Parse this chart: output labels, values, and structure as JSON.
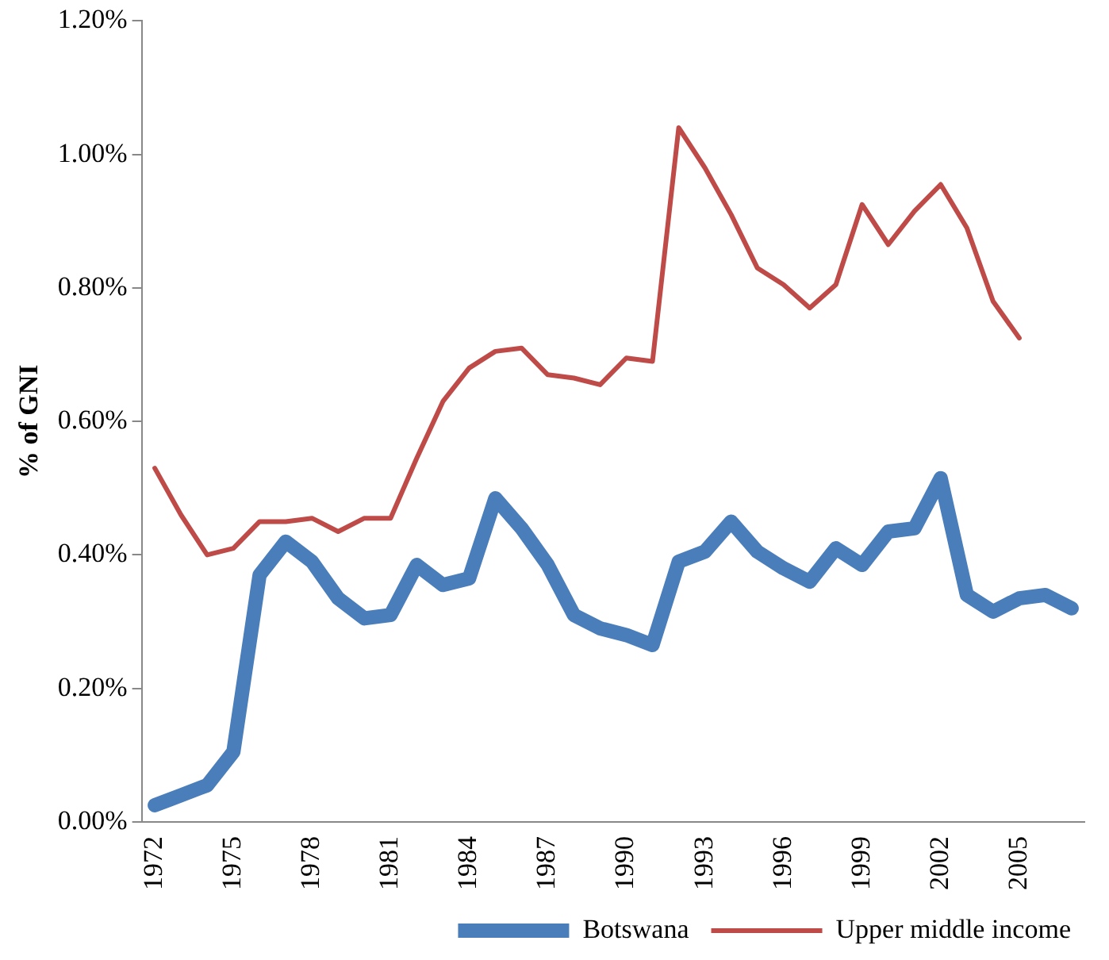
{
  "chart_data": {
    "type": "line",
    "ylabel": "% of GNI",
    "categories": [
      "1972",
      null,
      null,
      "1975",
      null,
      null,
      "1978",
      null,
      null,
      "1981",
      null,
      null,
      "1984",
      null,
      null,
      "1987",
      null,
      null,
      "1990",
      null,
      null,
      "1993",
      null,
      null,
      "1996",
      null,
      null,
      "1999",
      null,
      null,
      "2002",
      null,
      null,
      "2005",
      null,
      null
    ],
    "series": [
      {
        "name": "Botswana",
        "color": "#4a7ebb",
        "values": [
          0.025,
          0.04,
          0.055,
          0.105,
          0.37,
          0.42,
          0.39,
          0.335,
          0.305,
          0.31,
          0.385,
          0.355,
          0.365,
          0.485,
          0.44,
          0.385,
          0.31,
          0.29,
          0.28,
          0.265,
          0.39,
          0.405,
          0.45,
          0.405,
          0.38,
          0.36,
          0.41,
          0.385,
          0.435,
          0.44,
          0.515,
          0.34,
          0.315,
          0.335,
          0.34,
          0.32
        ]
      },
      {
        "name": "Upper middle income",
        "color": "#be4b48",
        "values": [
          0.53,
          0.46,
          0.4,
          0.41,
          0.45,
          0.45,
          0.455,
          0.435,
          0.455,
          0.455,
          0.545,
          0.63,
          0.68,
          0.705,
          0.71,
          0.67,
          0.665,
          0.655,
          0.695,
          0.69,
          1.04,
          0.98,
          0.91,
          0.83,
          0.805,
          0.77,
          0.805,
          0.925,
          0.865,
          0.915,
          0.955,
          0.89,
          0.78,
          0.725,
          null,
          null
        ]
      }
    ],
    "ylim": [
      0,
      1.2
    ],
    "yticks": [
      {
        "value": 0,
        "label": "0.00%"
      },
      {
        "value": 0.2,
        "label": "0.20%"
      },
      {
        "value": 0.4,
        "label": "0.40%"
      },
      {
        "value": 0.6,
        "label": "0.60%"
      },
      {
        "value": 0.8,
        "label": "0.80%"
      },
      {
        "value": 1.0,
        "label": "1.00%"
      },
      {
        "value": 1.2,
        "label": "1.20%"
      }
    ],
    "grid": false,
    "legend": "bottom",
    "marker": "none"
  }
}
